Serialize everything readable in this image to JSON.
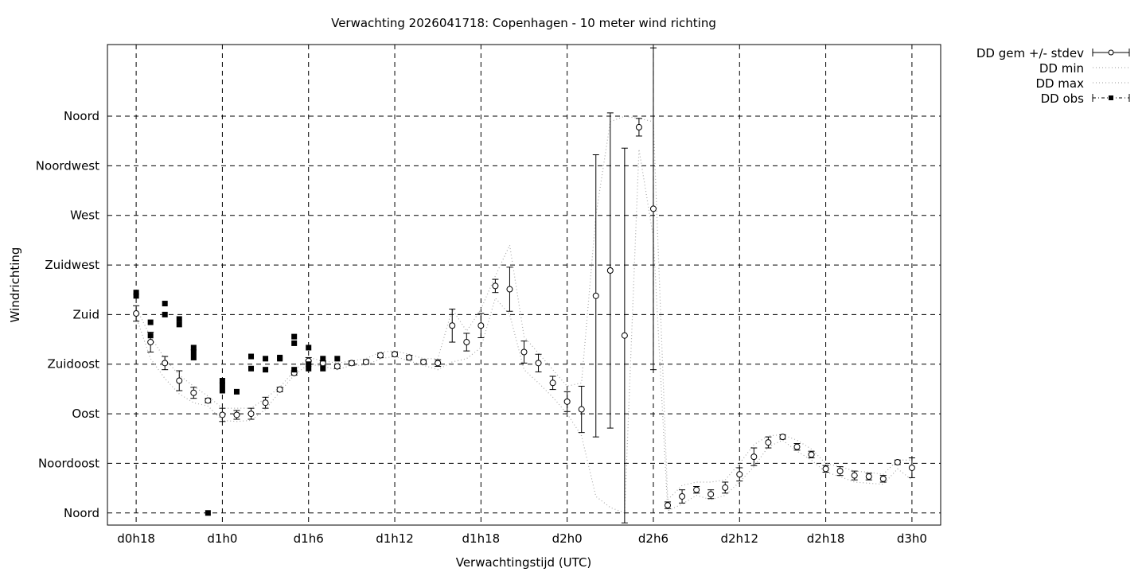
{
  "chart_data": {
    "type": "scatter",
    "title": "Verwachting 2026041718: Copenhagen - 10 meter wind richting",
    "xlabel": "Verwachtingstijd (UTC)",
    "ylabel": "Windrichting",
    "xlim": [
      16,
      74
    ],
    "ylim": [
      -11,
      425
    ],
    "grid": true,
    "legend_placement": "outside-top-right",
    "xticks": [
      {
        "value": 18,
        "label": "d0h18"
      },
      {
        "value": 24,
        "label": "d1h0"
      },
      {
        "value": 30,
        "label": "d1h6"
      },
      {
        "value": 36,
        "label": "d1h12"
      },
      {
        "value": 42,
        "label": "d1h18"
      },
      {
        "value": 48,
        "label": "d2h0"
      },
      {
        "value": 54,
        "label": "d2h6"
      },
      {
        "value": 60,
        "label": "d2h12"
      },
      {
        "value": 66,
        "label": "d2h18"
      },
      {
        "value": 72,
        "label": "d3h0"
      }
    ],
    "yticks": [
      {
        "value": 0,
        "label": "Noord"
      },
      {
        "value": 45,
        "label": "Noordoost"
      },
      {
        "value": 90,
        "label": "Oost"
      },
      {
        "value": 135,
        "label": "Zuidoost"
      },
      {
        "value": 180,
        "label": "Zuid"
      },
      {
        "value": 225,
        "label": "Zuidwest"
      },
      {
        "value": 270,
        "label": "West"
      },
      {
        "value": 315,
        "label": "Noordwest"
      },
      {
        "value": 360,
        "label": "Noord"
      }
    ],
    "series": [
      {
        "name": "DD gem +/- stdev",
        "style": "errorbars",
        "x": [
          18,
          19,
          20,
          21,
          22,
          23,
          24,
          25,
          26,
          27,
          28,
          29,
          30,
          31,
          32,
          33,
          34,
          35,
          36,
          37,
          38,
          39,
          40,
          41,
          42,
          43,
          44,
          45,
          46,
          47,
          48,
          49,
          50,
          51,
          52,
          53,
          54,
          55,
          56,
          57,
          58,
          59,
          60,
          61,
          62,
          63,
          64,
          65,
          66,
          67,
          68,
          69,
          70,
          71,
          72
        ],
        "mean": [
          181,
          155,
          136,
          120,
          109,
          102,
          89,
          89,
          90,
          100,
          112,
          127,
          138,
          136,
          133,
          136,
          137,
          143,
          144,
          141,
          137,
          136,
          170,
          155,
          170,
          206,
          203,
          146,
          136,
          118,
          101,
          94,
          197,
          220,
          161,
          350,
          276,
          7,
          15,
          21,
          17,
          23,
          35,
          51,
          64,
          69,
          60,
          53,
          40,
          38,
          34,
          33,
          31,
          46,
          41
        ],
        "stdev": [
          7,
          9,
          6,
          9,
          5,
          2,
          6,
          4,
          5,
          5,
          2,
          2,
          3,
          2,
          2,
          2,
          2,
          2,
          2,
          2,
          2,
          3,
          15,
          8,
          11,
          6,
          20,
          10,
          8,
          6,
          9,
          21,
          128,
          143,
          170,
          8,
          146,
          3,
          6,
          3,
          4,
          5,
          6,
          8,
          5,
          2,
          3,
          3,
          3,
          4,
          4,
          3,
          3,
          2,
          9
        ]
      },
      {
        "name": "DD min",
        "style": "dotted-line",
        "x": [
          18,
          19,
          20,
          21,
          22,
          23,
          24,
          25,
          26,
          27,
          28,
          29,
          30,
          31,
          32,
          33,
          34,
          35,
          36,
          37,
          38,
          39,
          40,
          41,
          42,
          43,
          44,
          45,
          46,
          47,
          48,
          49,
          50,
          51,
          52,
          53,
          54,
          55,
          56,
          57,
          58,
          59,
          60,
          61,
          62,
          63,
          64,
          65,
          66,
          67,
          68,
          69,
          70,
          71,
          72
        ],
        "values": [
          178,
          140,
          122,
          108,
          100,
          97,
          84,
          83,
          84,
          94,
          110,
          125,
          135,
          133,
          130,
          134,
          134,
          140,
          142,
          138,
          134,
          130,
          137,
          140,
          150,
          195,
          180,
          130,
          118,
          105,
          90,
          70,
          15,
          5,
          0,
          330,
          250,
          2,
          8,
          16,
          12,
          16,
          28,
          42,
          60,
          66,
          56,
          48,
          37,
          33,
          28,
          27,
          26,
          40,
          30
        ]
      },
      {
        "name": "DD max",
        "style": "dotted-line",
        "x": [
          18,
          19,
          20,
          21,
          22,
          23,
          24,
          25,
          26,
          27,
          28,
          29,
          30,
          31,
          32,
          33,
          34,
          35,
          36,
          37,
          38,
          39,
          40,
          41,
          42,
          43,
          44,
          45,
          46,
          47,
          48,
          49,
          50,
          51,
          52,
          53,
          54,
          55,
          56,
          57,
          58,
          59,
          60,
          61,
          62,
          63,
          64,
          65,
          66,
          67,
          68,
          69,
          70,
          71,
          72
        ],
        "values": [
          186,
          160,
          140,
          125,
          115,
          106,
          95,
          95,
          95,
          104,
          114,
          129,
          141,
          138,
          136,
          138,
          140,
          146,
          147,
          144,
          140,
          140,
          185,
          165,
          185,
          215,
          243,
          160,
          145,
          130,
          115,
          118,
          270,
          355,
          360,
          358,
          355,
          12,
          25,
          28,
          28,
          30,
          45,
          62,
          70,
          71,
          66,
          58,
          45,
          42,
          38,
          37,
          35,
          48,
          48
        ]
      },
      {
        "name": "DD obs",
        "style": "points",
        "points": [
          [
            18,
            200
          ],
          [
            18,
            197
          ],
          [
            19,
            173
          ],
          [
            19,
            161
          ],
          [
            20,
            190
          ],
          [
            20,
            180
          ],
          [
            21,
            176
          ],
          [
            21,
            171
          ],
          [
            22,
            150
          ],
          [
            22,
            146
          ],
          [
            22,
            141
          ],
          [
            23,
            0
          ],
          [
            24,
            120
          ],
          [
            24,
            116
          ],
          [
            24,
            111
          ],
          [
            25,
            110
          ],
          [
            26,
            142
          ],
          [
            26,
            131
          ],
          [
            27,
            140
          ],
          [
            27,
            130
          ],
          [
            28,
            141
          ],
          [
            28,
            140
          ],
          [
            29,
            160
          ],
          [
            29,
            154
          ],
          [
            29,
            130
          ],
          [
            30,
            150
          ],
          [
            30,
            135
          ],
          [
            30,
            131
          ],
          [
            31,
            140
          ],
          [
            31,
            131
          ],
          [
            32,
            140
          ]
        ]
      }
    ]
  }
}
